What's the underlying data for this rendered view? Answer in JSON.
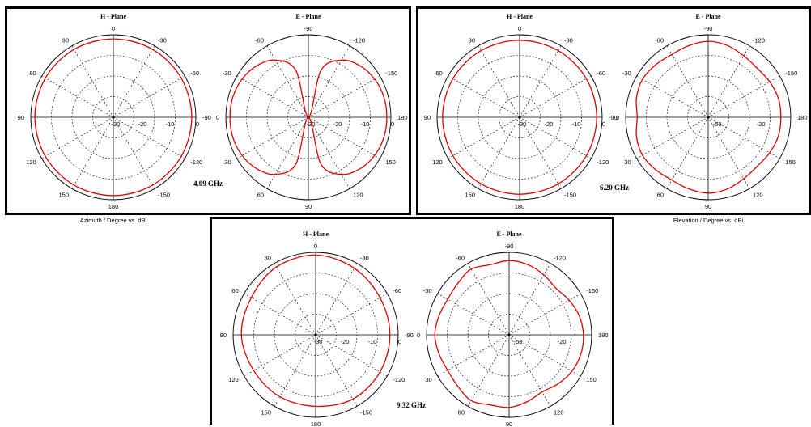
{
  "chart_data": [
    {
      "type": "polar-line",
      "frequency": "4.09 GHz",
      "h_plane": {
        "title": "H - Plane",
        "xlabel": "Azimuth / Degree vs. dBi",
        "angle_labels": [
          "0",
          "-30",
          "-60",
          "-90",
          "-120",
          "-150",
          "180",
          "150",
          "120",
          "90",
          "60",
          "30"
        ],
        "radial_labels": [
          "-30",
          "-20",
          "-10",
          "0"
        ],
        "radial_range": [
          -30,
          0
        ],
        "series": [
          {
            "color": "#e00000",
            "angle_deg": [
              0,
              30,
              60,
              90,
              120,
              150,
              180,
              210,
              240,
              270,
              300,
              330
            ],
            "gain_dbi": [
              -1.5,
              -1.5,
              -1.5,
              -1.5,
              -1.5,
              -1.5,
              -1.5,
              -1.5,
              -1.5,
              -1.5,
              -1.5,
              -1.5
            ]
          }
        ]
      },
      "e_plane": {
        "title": "E - Plane",
        "xlabel": "Elevation / Degree vs. dBi",
        "angle_labels": [
          "-90",
          "-120",
          "-150",
          "180",
          "150",
          "120",
          "90",
          "60",
          "30",
          "0",
          "-30",
          "-60"
        ],
        "radial_labels": [
          "-30",
          "-20",
          "-10",
          "0"
        ],
        "radial_range": [
          -30,
          0
        ],
        "series": [
          {
            "color": "#e00000",
            "angle_deg": [
              0,
              15,
              30,
              45,
              60,
              75,
              90,
              105,
              120,
              135,
              150,
              165,
              180,
              195,
              210,
              225,
              240,
              255,
              270,
              285,
              300,
              315,
              330,
              345
            ],
            "gain_dbi": [
              -30,
              -12.3,
              -6,
              -3.5,
              -2.2,
              -1.6,
              -1.5,
              -1.6,
              -2.2,
              -3.5,
              -6,
              -12.3,
              -30,
              -12.3,
              -6,
              -3.5,
              -2.2,
              -1.6,
              -1.5,
              -1.6,
              -2.2,
              -3.5,
              -6,
              -12.3
            ]
          }
        ]
      }
    },
    {
      "type": "polar-line",
      "frequency": "6.20 GHz",
      "h_plane": {
        "title": "H - Plane",
        "xlabel": "Azimuth / Degree vs. dBi",
        "angle_labels": [
          "0",
          "-30",
          "-60",
          "-90",
          "-120",
          "-150",
          "180",
          "150",
          "120",
          "90",
          "60",
          "30"
        ],
        "radial_labels": [
          "-30",
          "-20",
          "-10",
          "0"
        ],
        "radial_range": [
          -30,
          0
        ],
        "series": [
          {
            "color": "#e00000",
            "angle_deg": [
              0,
              30,
              60,
              90,
              120,
              150,
              180,
              210,
              240,
              270,
              300,
              330
            ],
            "gain_dbi": [
              -2,
              -2,
              -2,
              -2,
              -2,
              -2,
              -2,
              -2,
              -2,
              -2,
              -2,
              -2
            ]
          }
        ]
      },
      "e_plane": {
        "title": "E - Plane",
        "xlabel": "Elevation / Degree vs. dBi",
        "angle_labels": [
          "-90",
          "-120",
          "-150",
          "180",
          "150",
          "120",
          "90",
          "60",
          "30",
          "0",
          "-30",
          "-60"
        ],
        "radial_labels": [
          "-50",
          "-20"
        ],
        "radial_range": [
          -50,
          0
        ],
        "series": [
          {
            "color": "#e00000",
            "angle_deg": [
              0,
              15,
              30,
              45,
              60,
              75,
              90,
              105,
              120,
              135,
              150,
              165,
              180,
              195,
              210,
              225,
              240,
              255,
              270,
              285,
              300,
              315,
              330,
              345
            ],
            "gain_dbi": [
              -4,
              -5,
              -7,
              -8,
              -7,
              -6,
              -6,
              -6,
              -7,
              -8,
              -7,
              -5,
              -4,
              -5,
              -6,
              -5,
              -4,
              -5,
              -7,
              -5,
              -4,
              -5,
              -6,
              -5
            ]
          }
        ]
      }
    },
    {
      "type": "polar-line",
      "frequency": "9.32 GHz",
      "h_plane": {
        "title": "H - Plane",
        "xlabel": "Azimuth / Degree vs. dBi",
        "angle_labels": [
          "0",
          "-30",
          "-60",
          "-90",
          "-120",
          "-150",
          "180",
          "150",
          "120",
          "90",
          "60",
          "30"
        ],
        "radial_labels": [
          "-30",
          "-20",
          "-10",
          "0"
        ],
        "radial_range": [
          -30,
          0
        ],
        "series": [
          {
            "color": "#e00000",
            "angle_deg": [
              0,
              30,
              60,
              90,
              120,
              150,
              180,
              210,
              240,
              270,
              300,
              330
            ],
            "gain_dbi": [
              -1,
              -2,
              -3,
              -3,
              -3,
              -3,
              -4,
              -4,
              -4,
              -3,
              -3,
              -1.5
            ]
          }
        ]
      },
      "e_plane": {
        "title": "E - Plane",
        "xlabel": "Elevation / Degree vs. dBi",
        "angle_labels": [
          "-90",
          "-120",
          "-150",
          "180",
          "150",
          "120",
          "90",
          "60",
          "30",
          "0",
          "-30",
          "-60"
        ],
        "radial_labels": [
          "-50",
          "-20"
        ],
        "radial_range": [
          -50,
          0
        ],
        "series": [
          {
            "color": "#e00000",
            "angle_deg": [
              0,
              15,
              30,
              45,
              60,
              75,
              90,
              105,
              120,
              135,
              150,
              165,
              180,
              195,
              210,
              225,
              240,
              255,
              270,
              285,
              300,
              315,
              330,
              345
            ],
            "gain_dbi": [
              -5,
              -6,
              -8,
              -10,
              -8,
              -6,
              -5,
              -5,
              -6,
              -8,
              -10,
              -8,
              -6,
              -6,
              -4,
              -6,
              -7,
              -6,
              -5,
              -6,
              -7,
              -6,
              -4,
              -6
            ]
          }
        ]
      }
    }
  ]
}
